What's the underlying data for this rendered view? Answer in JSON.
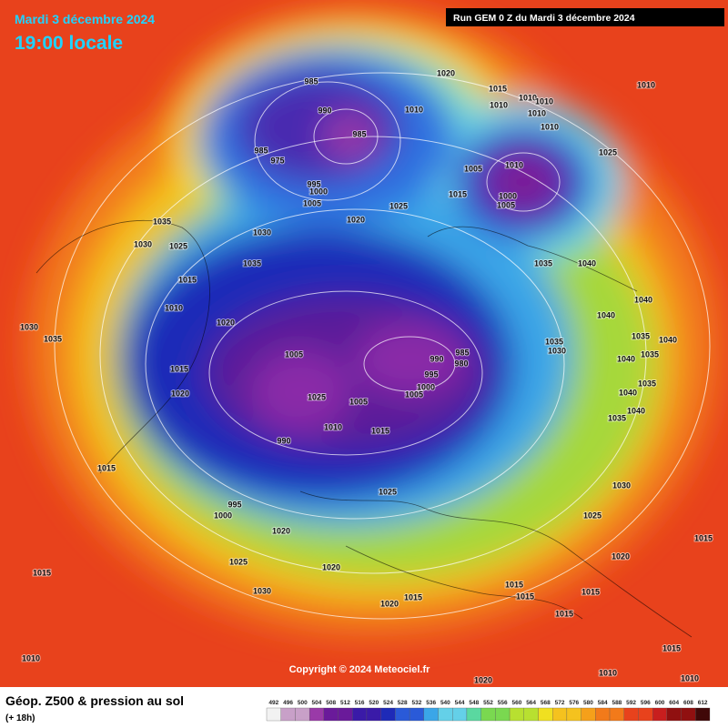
{
  "header": {
    "date": "Mardi 3 décembre 2024",
    "time": "19:00 locale",
    "run": "Run GEM 0 Z du Mardi 3 décembre 2024"
  },
  "map": {
    "copyright": "Copyright © 2024 Meteociel.fr",
    "isobar_labels": [
      "985",
      "990",
      "985",
      "985",
      "975",
      "995",
      "1000",
      "1005",
      "1010",
      "1020",
      "1015",
      "1010",
      "1010",
      "1010",
      "1010",
      "1010",
      "1010",
      "1025",
      "1005",
      "1010",
      "1000",
      "1005",
      "1015",
      "1025",
      "1020",
      "1030",
      "1035",
      "1025",
      "1030",
      "1035",
      "1015",
      "1010",
      "1020",
      "1005",
      "1015",
      "1020",
      "1025",
      "1005",
      "1010",
      "1015",
      "990",
      "990",
      "985",
      "980",
      "995",
      "1000",
      "1005",
      "1035",
      "1040",
      "1040",
      "1040",
      "1035",
      "1030",
      "1035",
      "1040",
      "1040",
      "1035",
      "1035",
      "1040",
      "1040",
      "1035",
      "1030",
      "1025",
      "1020",
      "1015",
      "1015",
      "1015",
      "1015",
      "1015",
      "1015",
      "1010",
      "1010",
      "1020",
      "1015",
      "1020",
      "1020",
      "1025",
      "1030",
      "1020",
      "1025",
      "1015",
      "995",
      "1000",
      "1015",
      "1010",
      "1030",
      "1035"
    ]
  },
  "footer": {
    "title": "Géop. Z500 & pression au sol",
    "lead": "(+ 18h)",
    "levels": [
      492,
      496,
      500,
      504,
      508,
      512,
      516,
      520,
      524,
      528,
      532,
      536,
      540,
      544,
      548,
      552,
      556,
      560,
      564,
      568,
      572,
      576,
      580,
      584,
      588,
      592,
      596,
      600,
      604,
      608,
      612
    ]
  }
}
